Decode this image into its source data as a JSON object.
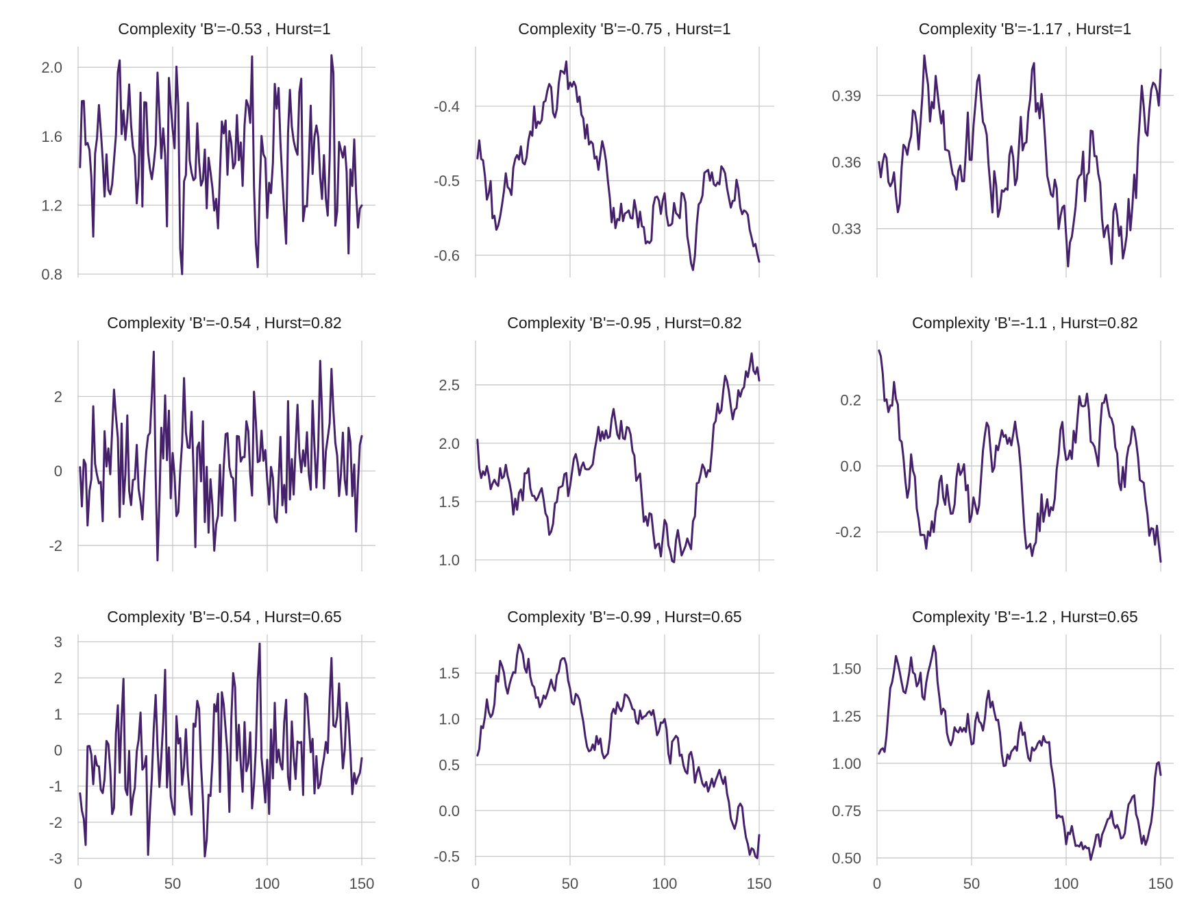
{
  "chart_data": [
    {
      "type": "line",
      "title": "Complexity 'B'=-0.53 , Hurst=1",
      "xlim": [
        0,
        150
      ],
      "ylim": [
        0.78,
        2.12
      ],
      "xticks": [
        0,
        50,
        100,
        150
      ],
      "yticks": [
        0.8,
        1.2,
        1.6,
        2.0
      ],
      "ytick_labels": [
        "0.8",
        "1.2",
        "1.6",
        "2.0"
      ],
      "show_xtick_labels": false,
      "series": [
        {
          "seed": 11,
          "hurst": 0.08,
          "start": 1.42,
          "min": 0.8,
          "max": 2.07,
          "mean": 1.3
        }
      ]
    },
    {
      "type": "line",
      "title": "Complexity 'B'=-0.75 , Hurst=1",
      "xlim": [
        0,
        150
      ],
      "ylim": [
        -0.63,
        -0.32
      ],
      "xticks": [
        0,
        50,
        100,
        150
      ],
      "yticks": [
        -0.6,
        -0.5,
        -0.4
      ],
      "ytick_labels": [
        "-0.6",
        "-0.5",
        "-0.4"
      ],
      "show_xtick_labels": false,
      "series": [
        {
          "seed": 12,
          "hurst": 0.5,
          "start": -0.47,
          "min": -0.62,
          "max": -0.34,
          "mean": -0.44
        }
      ]
    },
    {
      "type": "line",
      "title": "Complexity 'B'=-1.17 , Hurst=1",
      "xlim": [
        0,
        150
      ],
      "ylim": [
        0.308,
        0.412
      ],
      "xticks": [
        0,
        50,
        100,
        150
      ],
      "yticks": [
        0.33,
        0.36,
        0.39
      ],
      "ytick_labels": [
        "0.33",
        "0.36",
        "0.39"
      ],
      "show_xtick_labels": false,
      "series": [
        {
          "seed": 13,
          "hurst": 0.9,
          "start": 0.36,
          "min": 0.313,
          "max": 0.408,
          "mean": 0.355
        }
      ]
    },
    {
      "type": "line",
      "title": "Complexity 'B'=-0.54 , Hurst=0.82",
      "xlim": [
        0,
        150
      ],
      "ylim": [
        -2.7,
        3.5
      ],
      "xticks": [
        0,
        50,
        100,
        150
      ],
      "yticks": [
        -2,
        0,
        2
      ],
      "ytick_labels": [
        "-2",
        "0",
        "2"
      ],
      "show_xtick_labels": false,
      "series": [
        {
          "seed": 21,
          "hurst": 0.08,
          "start": 0.1,
          "min": -2.4,
          "max": 3.2,
          "mean": 0.5
        }
      ]
    },
    {
      "type": "line",
      "title": "Complexity 'B'=-0.95 , Hurst=0.82",
      "xlim": [
        0,
        150
      ],
      "ylim": [
        0.9,
        2.88
      ],
      "xticks": [
        0,
        50,
        100,
        150
      ],
      "yticks": [
        1.0,
        1.5,
        2.0,
        2.5
      ],
      "ytick_labels": [
        "1.0",
        "1.5",
        "2.0",
        "2.5"
      ],
      "show_xtick_labels": false,
      "series": [
        {
          "seed": 22,
          "hurst": 0.5,
          "start": 2.03,
          "min": 0.98,
          "max": 2.77,
          "mean": 1.9
        }
      ]
    },
    {
      "type": "line",
      "title": "Complexity 'B'=-1.1 , Hurst=0.82",
      "xlim": [
        0,
        150
      ],
      "ylim": [
        -0.32,
        0.38
      ],
      "xticks": [
        0,
        50,
        100,
        150
      ],
      "yticks": [
        -0.2,
        0.0,
        0.2
      ],
      "ytick_labels": [
        "-0.2",
        "0.0",
        "0.2"
      ],
      "show_xtick_labels": false,
      "series": [
        {
          "seed": 23,
          "hurst": 0.9,
          "start": 0.35,
          "min": -0.29,
          "max": 0.35,
          "mean": 0.05
        }
      ]
    },
    {
      "type": "line",
      "title": "Complexity 'B'=-0.54 , Hurst=0.65",
      "xlim": [
        0,
        150
      ],
      "ylim": [
        -3.2,
        3.2
      ],
      "xticks": [
        0,
        50,
        100,
        150
      ],
      "yticks": [
        -3,
        -2,
        -1,
        0,
        1,
        2,
        3
      ],
      "ytick_labels": [
        "-3",
        "-2",
        "-1",
        "0",
        "1",
        "2",
        "3"
      ],
      "show_xtick_labels": true,
      "xtick_labels": [
        "0",
        "50",
        "100",
        "150"
      ],
      "series": [
        {
          "seed": 31,
          "hurst": 0.08,
          "start": -1.2,
          "min": -2.95,
          "max": 2.95,
          "mean": 0.2
        }
      ]
    },
    {
      "type": "line",
      "title": "Complexity 'B'=-0.99 , Hurst=0.65",
      "xlim": [
        0,
        150
      ],
      "ylim": [
        -0.6,
        1.92
      ],
      "xticks": [
        0,
        50,
        100,
        150
      ],
      "yticks": [
        -0.5,
        0.0,
        0.5,
        1.0,
        1.5
      ],
      "ytick_labels": [
        "-0.5",
        "0.0",
        "0.5",
        "1.0",
        "1.5"
      ],
      "show_xtick_labels": true,
      "xtick_labels": [
        "0",
        "50",
        "100",
        "150"
      ],
      "series": [
        {
          "seed": 32,
          "hurst": 0.5,
          "start": 0.6,
          "min": -0.52,
          "max": 1.81,
          "mean": 0.8
        }
      ]
    },
    {
      "type": "line",
      "title": "Complexity 'B'=-1.2 , Hurst=0.65",
      "xlim": [
        0,
        150
      ],
      "ylim": [
        0.46,
        1.68
      ],
      "xticks": [
        0,
        50,
        100,
        150
      ],
      "yticks": [
        0.5,
        0.75,
        1.0,
        1.25,
        1.5
      ],
      "ytick_labels": [
        "0.50",
        "0.75",
        "1.00",
        "1.25",
        "1.50"
      ],
      "show_xtick_labels": true,
      "xtick_labels": [
        "0",
        "50",
        "100",
        "150"
      ],
      "series": [
        {
          "seed": 33,
          "hurst": 0.9,
          "start": 1.05,
          "min": 0.49,
          "max": 1.62,
          "mean": 1.0
        }
      ]
    }
  ],
  "colors": {
    "line": "#46216b",
    "grid": "#c8c8c8",
    "tick_text": "#4d4d4d",
    "title_text": "#1a1a1a"
  }
}
